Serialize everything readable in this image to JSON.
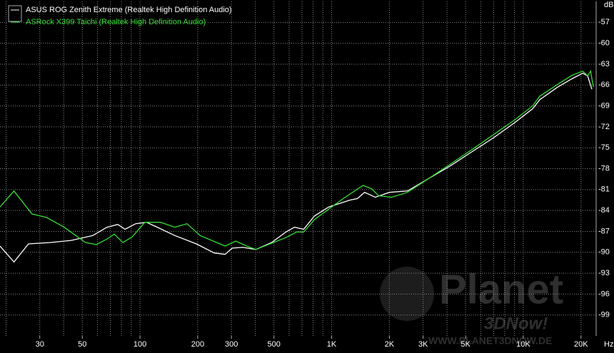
{
  "chart_data": {
    "type": "line",
    "xscale": "log",
    "grid": true,
    "legend": "top-left",
    "x_label": "Hz",
    "y_label": "dB",
    "xlim": [
      18.6,
      24000
    ],
    "ylim": [
      -102,
      -54
    ],
    "xticks": [
      30,
      50,
      100,
      200,
      300,
      500,
      {
        "value": 1000,
        "label": "1K"
      },
      {
        "value": 2000,
        "label": "2K"
      },
      {
        "value": 3000,
        "label": "3K"
      },
      {
        "value": 5000,
        "label": "5K"
      },
      {
        "value": 10000,
        "label": "10K"
      },
      {
        "value": 20000,
        "label": "20K"
      }
    ],
    "xgrid": [
      20,
      30,
      40,
      50,
      60,
      70,
      80,
      90,
      100,
      200,
      300,
      400,
      500,
      600,
      700,
      800,
      900,
      1000,
      2000,
      3000,
      4000,
      5000,
      6000,
      7000,
      8000,
      9000,
      10000,
      20000
    ],
    "yticks": [
      -57,
      -60,
      -63,
      -66,
      -69,
      -72,
      -75,
      -78,
      -81,
      -84,
      -87,
      -90,
      -93,
      -96,
      -99
    ],
    "series": [
      {
        "name": "ASUS ROG Zenith Extreme (Realtek High Definition Audio)",
        "color": "#ffffff",
        "x": [
          18.6,
          22,
          26.2,
          33.9,
          43.8,
          56.7,
          67.3,
          76.6,
          83.5,
          95,
          108,
          123,
          152,
          197,
          244,
          278,
          303,
          345,
          402,
          486,
          577,
          640,
          715,
          813,
          966,
          1250,
          1362,
          1485,
          1690,
          2005,
          2489,
          3215,
          4159,
          5383,
          6966,
          9016,
          11190,
          12190,
          15100,
          17950,
          20420,
          21680,
          22800
        ],
        "values": [
          -89.1,
          -91.4,
          -88.8,
          -88.6,
          -88.3,
          -87.6,
          -86.4,
          -86.0,
          -86.7,
          -85.9,
          -85.7,
          -86.4,
          -87.6,
          -88.8,
          -90.1,
          -90.3,
          -89.4,
          -89.3,
          -89.6,
          -88.6,
          -87.1,
          -86.4,
          -86.7,
          -84.8,
          -83.5,
          -82.5,
          -82.3,
          -81.4,
          -82.1,
          -81.4,
          -81.2,
          -79.4,
          -77.6,
          -75.6,
          -73.6,
          -71.4,
          -69.4,
          -68.1,
          -66.3,
          -65.1,
          -64.3,
          -64.7,
          -66.6
        ]
      },
      {
        "name": "ASRock X399 Taichi (Realtek High Definition Audio)",
        "color": "#33dd33",
        "x": [
          18.6,
          22,
          27.3,
          32.5,
          40.2,
          52,
          59.2,
          67.3,
          73.4,
          81.4,
          91,
          106,
          128,
          152,
          176,
          206,
          278,
          316,
          360,
          402,
          577,
          656,
          715,
          813,
          966,
          1148,
          1459,
          1618,
          1762,
          2056,
          2489,
          3215,
          5383,
          9016,
          11190,
          12190,
          15100,
          17950,
          20420,
          21680,
          22440,
          23220
        ],
        "values": [
          -83.5,
          -81.2,
          -84.5,
          -85.0,
          -86.4,
          -88.6,
          -88.9,
          -88.1,
          -87.4,
          -88.6,
          -87.8,
          -85.7,
          -85.7,
          -86.4,
          -85.9,
          -87.6,
          -89.1,
          -88.4,
          -89.1,
          -89.6,
          -87.9,
          -87.1,
          -87.1,
          -85.3,
          -83.8,
          -82.3,
          -80.4,
          -80.9,
          -81.9,
          -82.1,
          -81.4,
          -79.4,
          -75.3,
          -71.0,
          -69.0,
          -67.6,
          -65.9,
          -64.6,
          -64.0,
          -64.7,
          -64.0,
          -66.3
        ]
      }
    ]
  },
  "watermark": {
    "logo": "Planet",
    "sub": "3DNow!",
    "url": "WWW.PLANET3DNOW.DE"
  }
}
